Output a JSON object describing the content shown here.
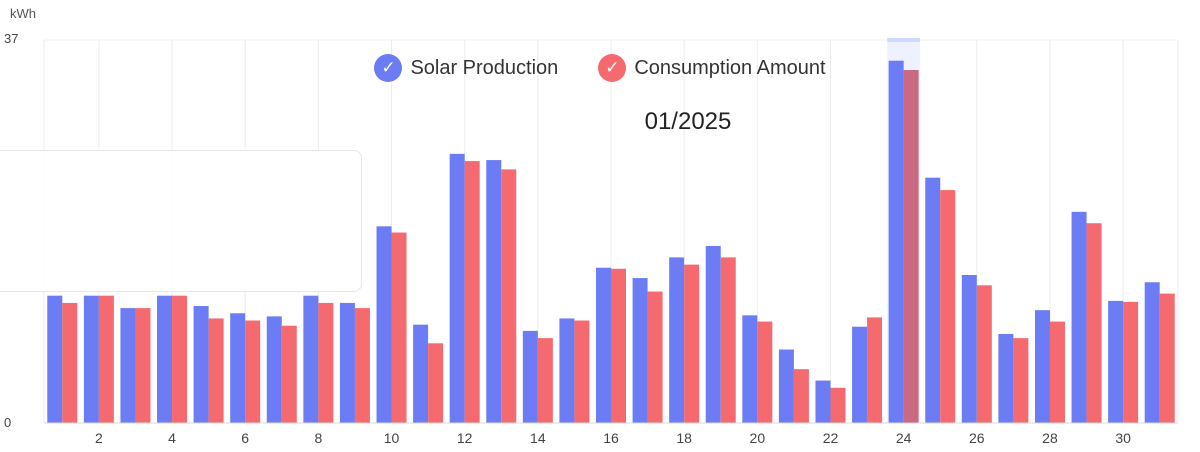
{
  "unit_label": "kWh",
  "period_label": "01/2025",
  "colors": {
    "solar": "#6c7cf4",
    "consumption": "#f46a6e",
    "highlight": "#cfd8ff"
  },
  "legend": [
    {
      "label": "Solar Production",
      "icon": "check-icon",
      "color": "#6c7cf4"
    },
    {
      "label": "Consumption Amount",
      "icon": "check-icon",
      "color": "#f46a6e"
    }
  ],
  "chart_data": {
    "type": "bar",
    "ylabel": "kWh",
    "ylim": [
      0,
      37
    ],
    "y_ticks": [
      "37",
      "0"
    ],
    "selected_day": 24,
    "days": [
      1,
      2,
      3,
      4,
      5,
      6,
      7,
      8,
      9,
      10,
      11,
      12,
      13,
      14,
      15,
      16,
      17,
      18,
      19,
      20,
      21,
      22,
      23,
      24,
      25,
      26,
      27,
      28,
      29,
      30,
      31
    ],
    "x_tick_labels": [
      "2",
      "4",
      "6",
      "8",
      "10",
      "12",
      "14",
      "16",
      "18",
      "20",
      "22",
      "24",
      "26",
      "28",
      "30"
    ],
    "series": [
      {
        "name": "Solar Production",
        "values": [
          12.3,
          12.3,
          11.1,
          12.3,
          11.3,
          10.6,
          10.3,
          12.3,
          11.6,
          19.0,
          9.5,
          26.0,
          25.4,
          8.9,
          10.1,
          15.0,
          14.0,
          16.0,
          17.1,
          10.4,
          7.1,
          4.1,
          9.3,
          35.0,
          23.7,
          14.3,
          8.6,
          10.9,
          20.4,
          11.8,
          13.6
        ]
      },
      {
        "name": "Consumption Amount",
        "values": [
          11.6,
          12.3,
          11.1,
          12.3,
          10.1,
          9.9,
          9.4,
          11.6,
          11.1,
          18.4,
          7.7,
          25.3,
          24.5,
          8.2,
          9.9,
          14.9,
          12.7,
          15.3,
          16.0,
          9.8,
          5.2,
          3.4,
          10.2,
          34.1,
          22.5,
          13.3,
          8.2,
          9.8,
          19.3,
          11.7,
          12.5
        ]
      }
    ]
  }
}
